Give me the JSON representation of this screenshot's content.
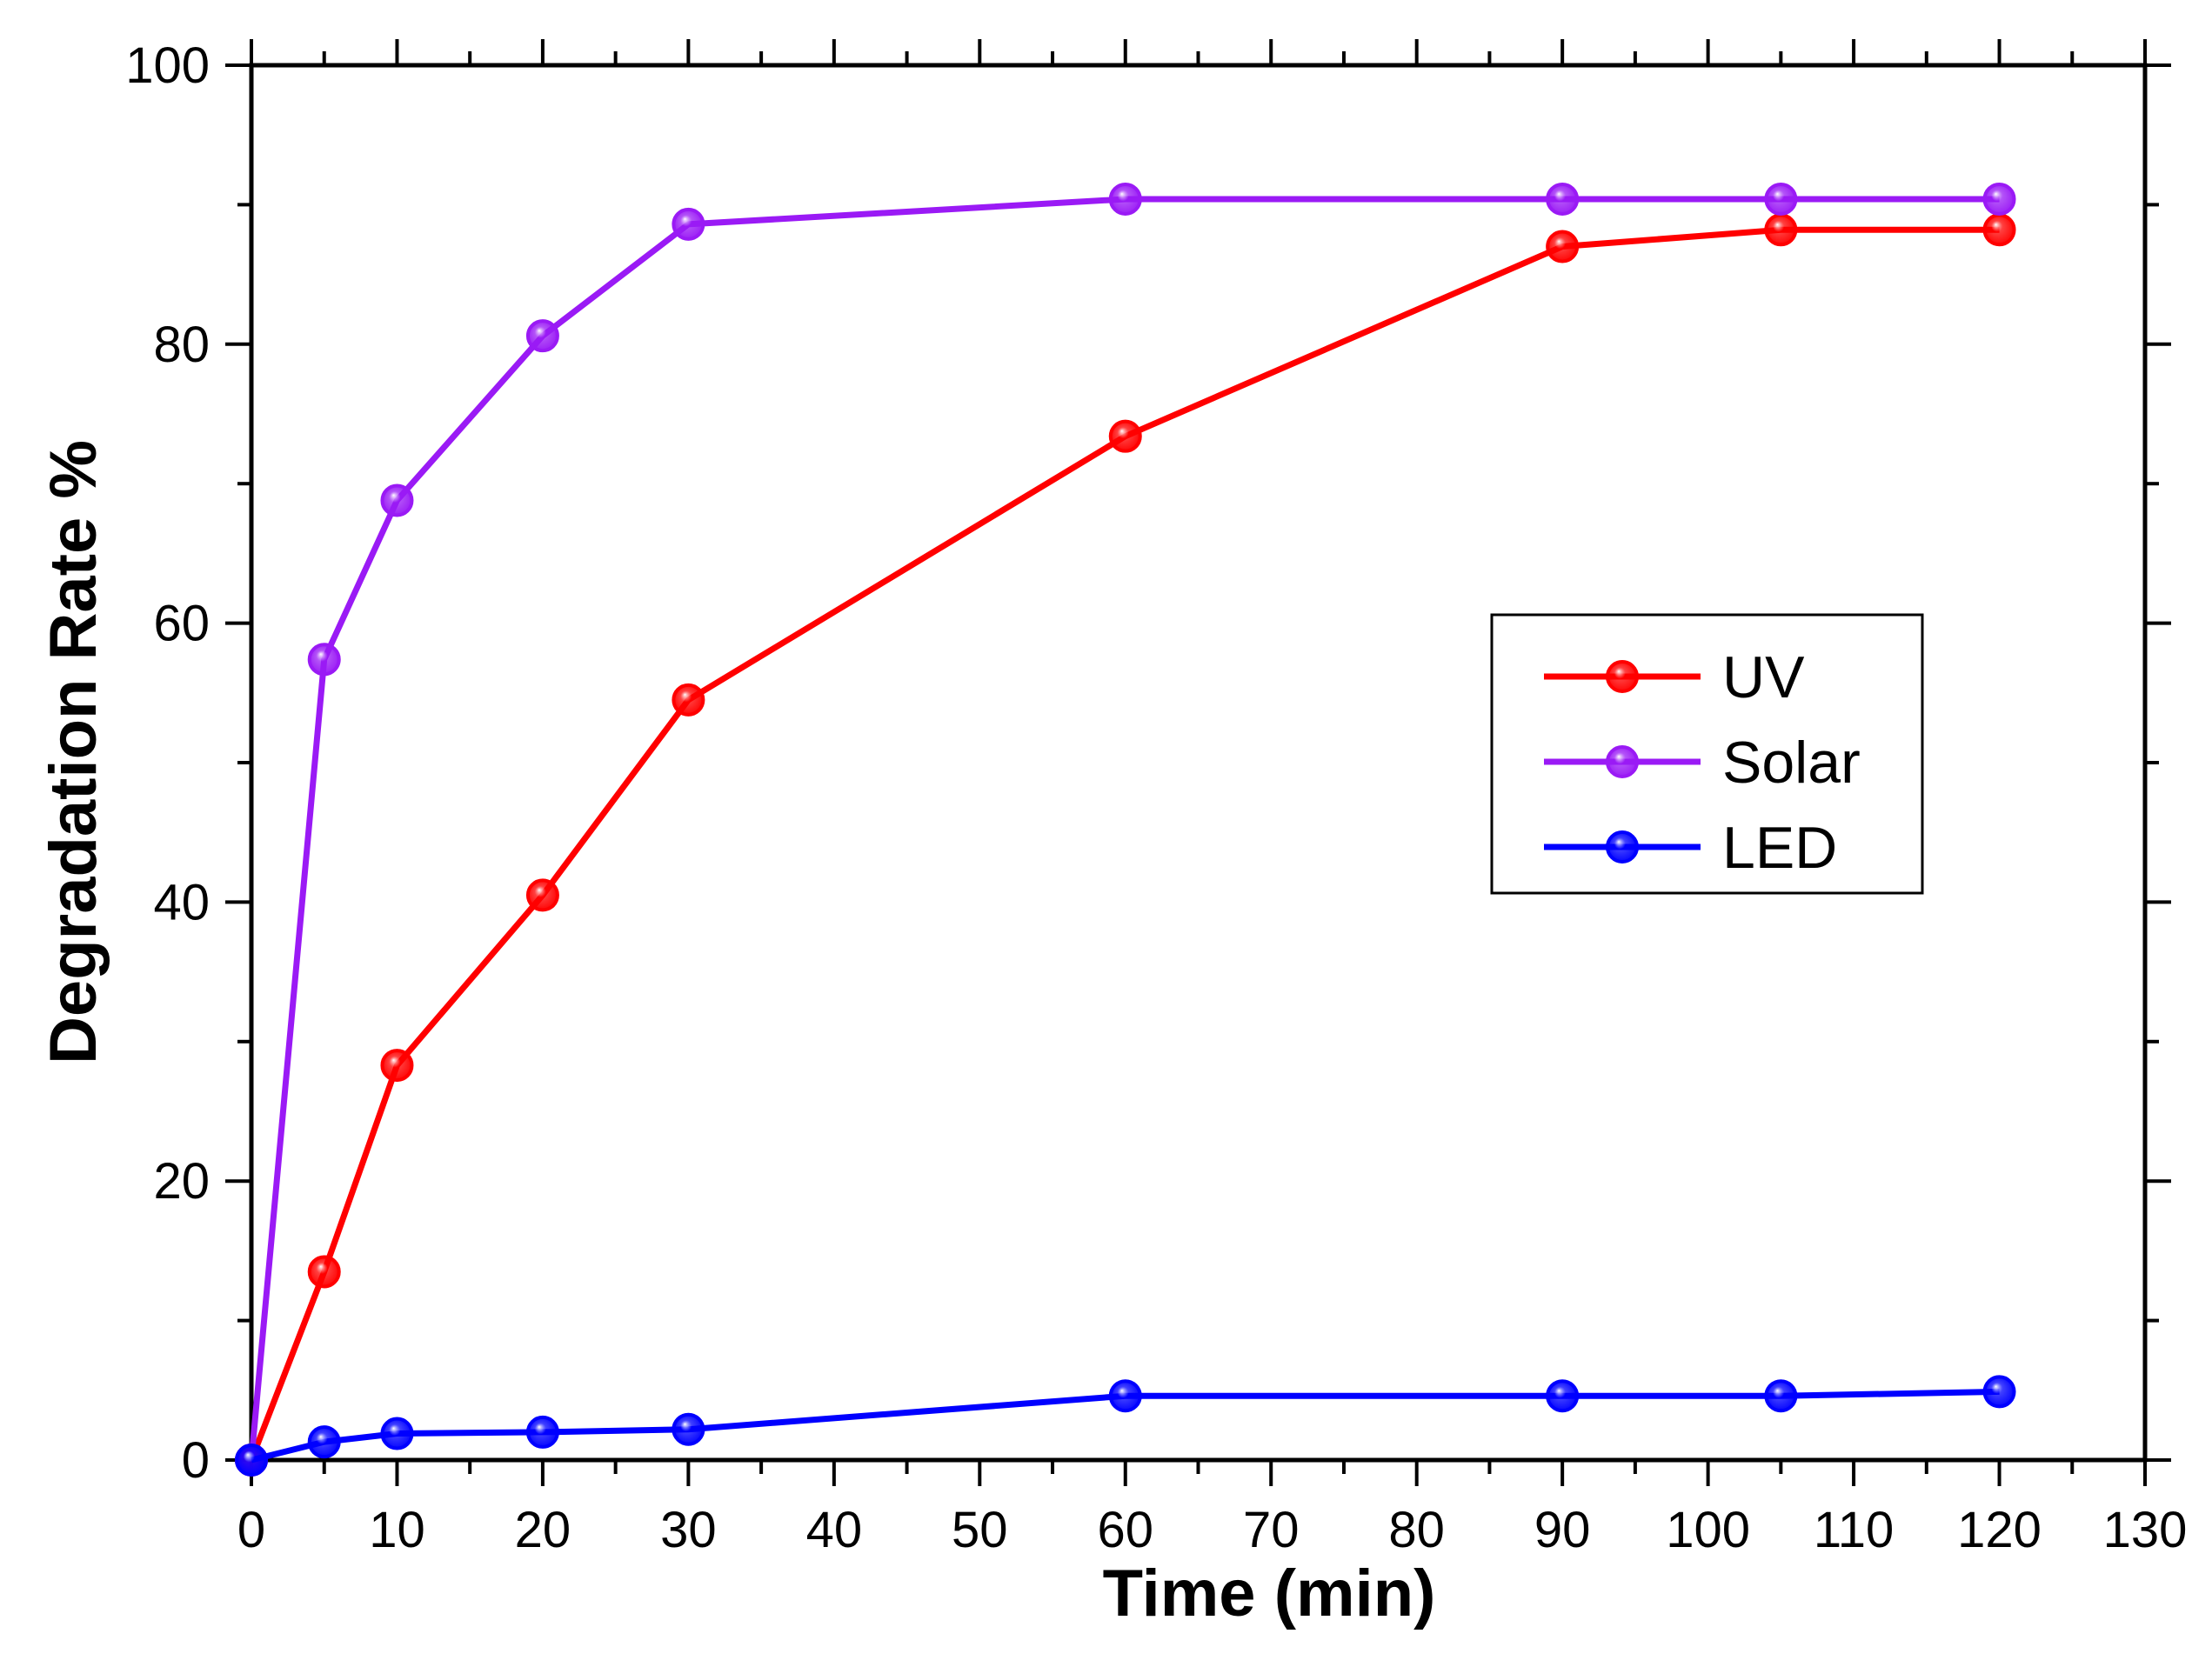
{
  "chart_data": {
    "type": "line",
    "title": "",
    "xlabel": "Time (min)",
    "ylabel": "Degradation Rate %",
    "xlim": [
      0,
      130
    ],
    "ylim": [
      0,
      100
    ],
    "xticks": [
      0,
      10,
      20,
      30,
      40,
      50,
      60,
      70,
      80,
      90,
      100,
      110,
      120,
      130
    ],
    "xtick_labels": [
      "0",
      "10",
      "20",
      "30",
      "40",
      "50",
      "60",
      "70",
      "80",
      "90",
      "100",
      "110",
      "120",
      "130"
    ],
    "yticks": [
      0,
      20,
      40,
      60,
      80,
      100
    ],
    "ytick_labels": [
      "0",
      "20",
      "40",
      "60",
      "80",
      "100"
    ],
    "grid": false,
    "legend_position": "center-right",
    "x": [
      0,
      5,
      10,
      20,
      30,
      60,
      90,
      105,
      120
    ],
    "series": [
      {
        "name": "UV",
        "color": "#ff0000",
        "values": [
          0,
          13.5,
          28.3,
          40.5,
          54.5,
          73.4,
          87.0,
          88.2,
          88.2
        ]
      },
      {
        "name": "Solar",
        "color": "#9a1af5",
        "values": [
          0,
          57.4,
          68.8,
          80.6,
          88.6,
          90.4,
          90.4,
          90.4,
          90.4
        ]
      },
      {
        "name": "LED",
        "color": "#0000ff",
        "values": [
          0,
          1.3,
          1.9,
          2.0,
          2.2,
          4.6,
          4.6,
          4.6,
          4.9
        ]
      }
    ]
  }
}
